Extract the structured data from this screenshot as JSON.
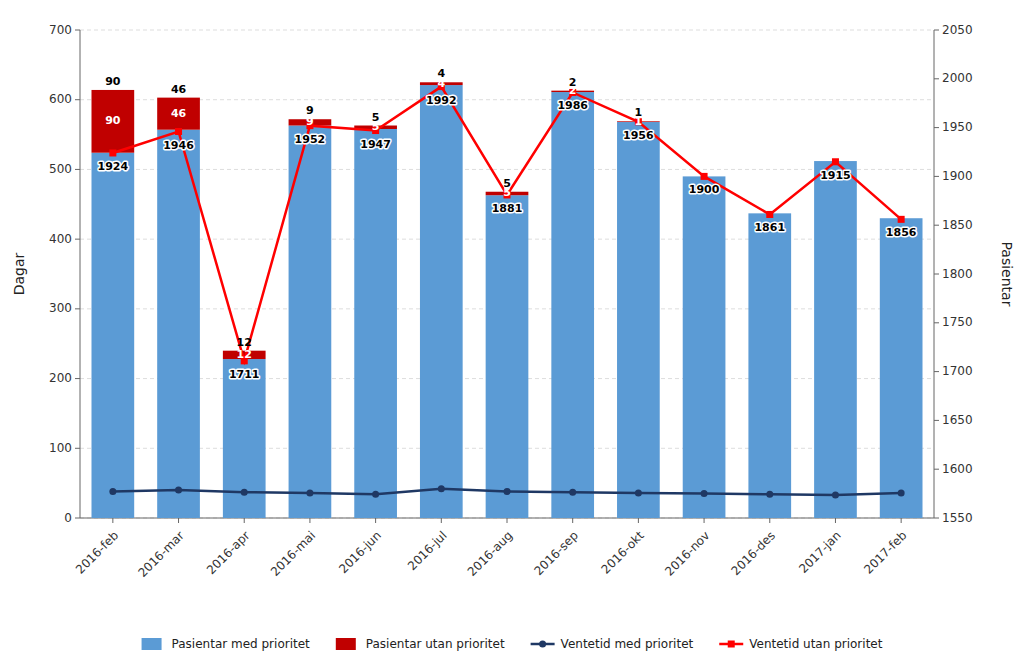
{
  "chart_data": {
    "type": "bar",
    "stacked": true,
    "grid": true,
    "legend": "bottom",
    "categories": [
      "2016-feb",
      "2016-mar",
      "2016-apr",
      "2016-mai",
      "2016-jun",
      "2016-jul",
      "2016-aug",
      "2016-sep",
      "2016-okt",
      "2016-nov",
      "2016-des",
      "2017-jan",
      "2017-feb"
    ],
    "y_label": "Dagar",
    "y2_label": "Pasientar",
    "ylim": [
      0,
      700
    ],
    "yticks": [
      0,
      100,
      200,
      300,
      400,
      500,
      600,
      700
    ],
    "y2lim": [
      1550,
      2050
    ],
    "y2ticks": [
      1550,
      1600,
      1650,
      1700,
      1750,
      1800,
      1850,
      1900,
      1950,
      2000,
      2050
    ],
    "series": [
      {
        "name": "Pasientar med prioritet",
        "type": "bar",
        "color": "#5B9BD5",
        "values": [
          524,
          557,
          228,
          563,
          558,
          621,
          463,
          611,
          568,
          490,
          437,
          512,
          430
        ]
      },
      {
        "name": "Pasientar utan prioritet",
        "type": "bar",
        "color": "#C00000",
        "data_labels": true,
        "values": [
          90,
          46,
          12,
          9,
          5,
          4,
          5,
          2,
          1,
          0,
          0,
          0,
          0
        ]
      },
      {
        "name": "Ventetid med prioritet",
        "type": "line",
        "color": "#1F3864",
        "marker": "circle",
        "line_style": "solid",
        "values": [
          38,
          40,
          37,
          36,
          34,
          42,
          38,
          37,
          36,
          35,
          34,
          33,
          36
        ]
      },
      {
        "name": "Ventetid utan prioritet",
        "type": "line",
        "axis": "y2",
        "color": "#FF0000",
        "marker": "square",
        "line_style": "solid",
        "data_labels": true,
        "values": [
          1924,
          1946,
          1711,
          1952,
          1947,
          1992,
          1881,
          1986,
          1956,
          1900,
          1861,
          1915,
          1856
        ]
      }
    ]
  }
}
